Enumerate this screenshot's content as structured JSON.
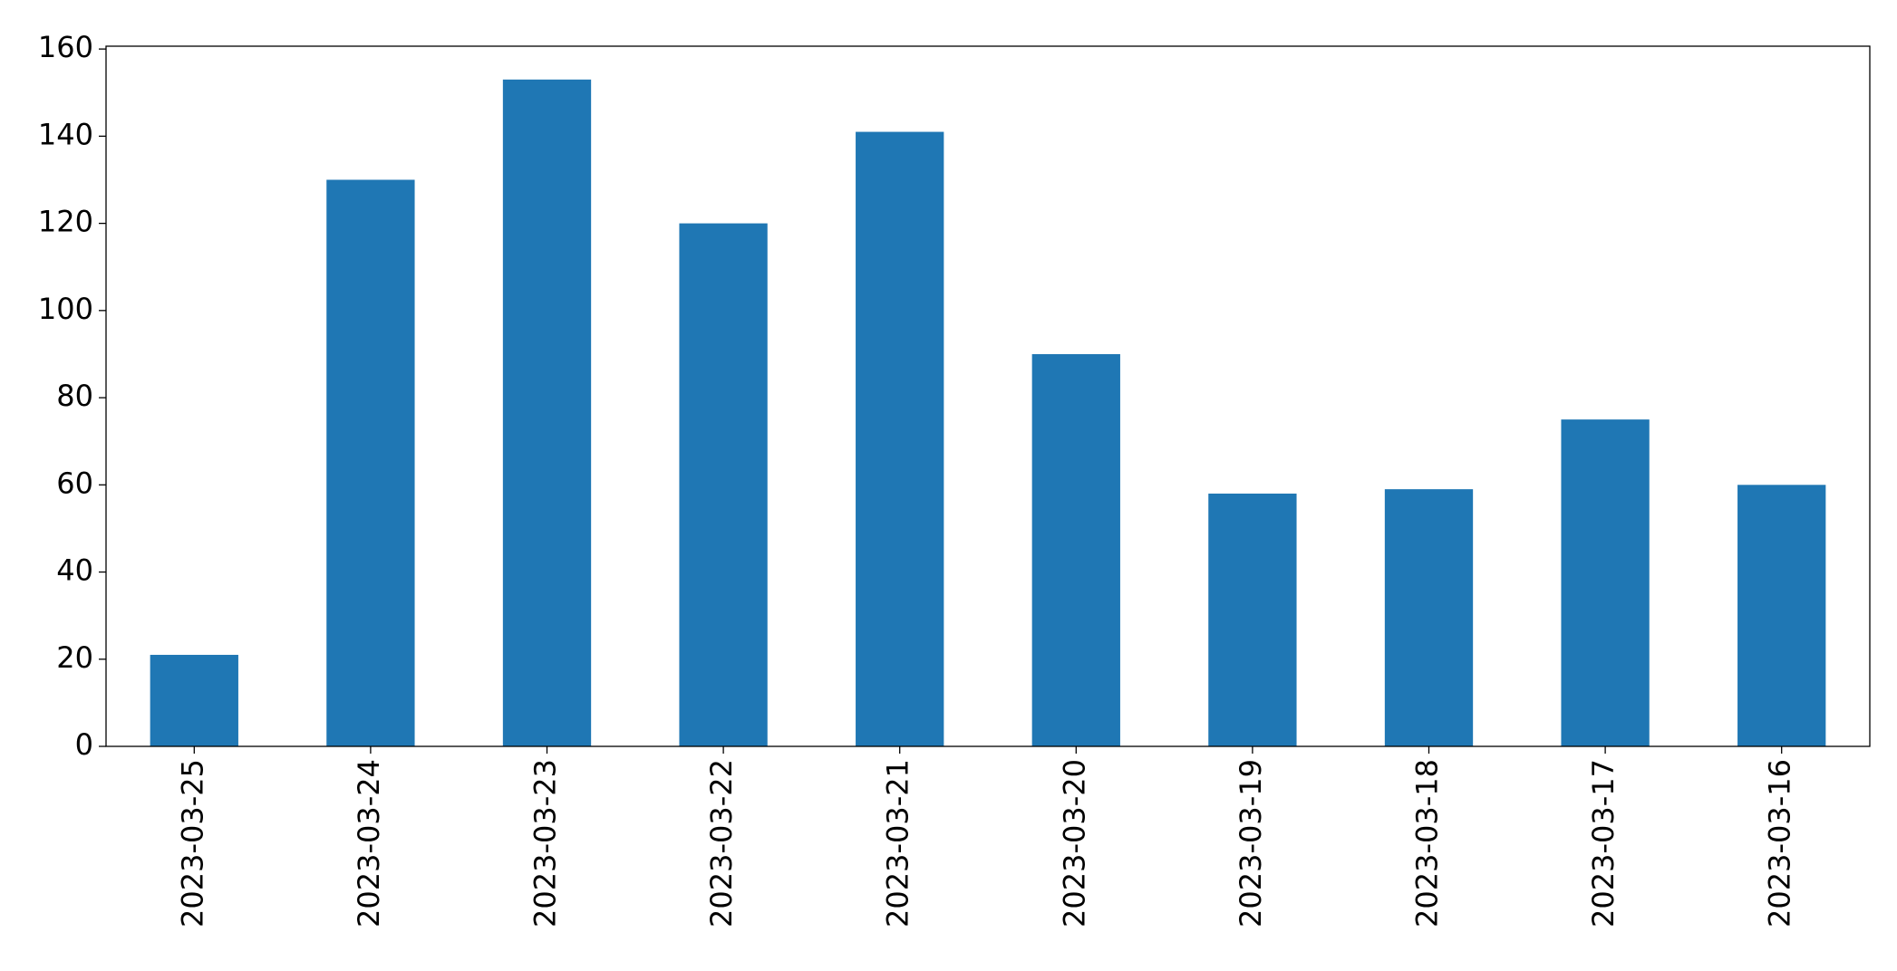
{
  "chart_data": {
    "type": "bar",
    "categories": [
      "2023-03-25",
      "2023-03-24",
      "2023-03-23",
      "2023-03-22",
      "2023-03-21",
      "2023-03-20",
      "2023-03-19",
      "2023-03-18",
      "2023-03-17",
      "2023-03-16"
    ],
    "values": [
      21,
      130,
      153,
      120,
      141,
      90,
      58,
      59,
      75,
      60
    ],
    "color": "#1f77b4",
    "ylim": [
      0,
      160.65
    ],
    "yticks": [
      0,
      20,
      40,
      60,
      80,
      100,
      120,
      140,
      160
    ],
    "grid": false
  }
}
